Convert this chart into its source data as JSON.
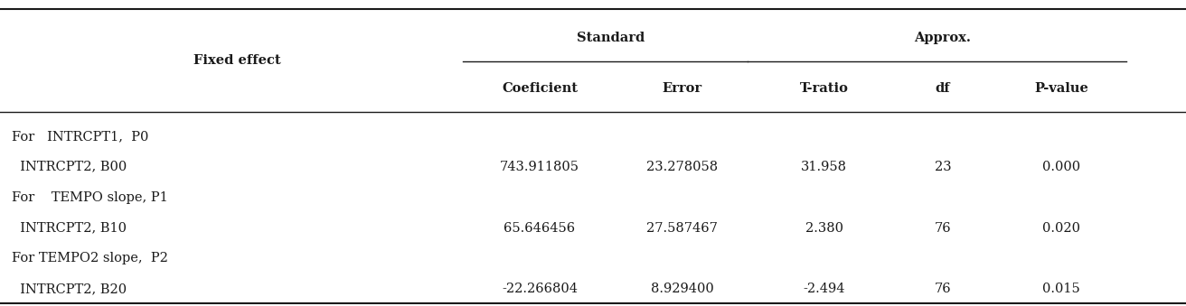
{
  "col_headers_top_labels": [
    "Standard",
    "Approx."
  ],
  "col_headers_sub": [
    "Fixed effect",
    "Coeficient",
    "Error",
    "T-ratio",
    "df",
    "P-value"
  ],
  "row_label_line1": [
    "For   INTRCPT1,  P0",
    "For    TEMPO slope, P1",
    "For TEMPO2 slope,  P2"
  ],
  "row_label_line2": [
    "  INTRCPT2, B00",
    "  INTRCPT2, B10",
    "  INTRCPT2, B20"
  ],
  "row_data": [
    [
      "743.911805",
      "23.278058",
      "31.958",
      "23",
      "0.000"
    ],
    [
      "65.646456",
      "27.587467",
      "2.380",
      "76",
      "0.020"
    ],
    [
      "-22.266804",
      "8.929400",
      "-2.494",
      "76",
      "0.015"
    ]
  ],
  "bg_color": "#ffffff",
  "text_color": "#1a1a1a",
  "font_size": 10.5
}
